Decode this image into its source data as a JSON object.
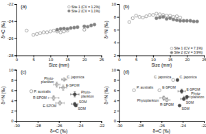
{
  "chart_data": [
    {
      "type": "scatter",
      "title": "(a)",
      "x_label": "Size (mm)",
      "y_label": "δ¹³C (‰)",
      "xlim": [
        0,
        25
      ],
      "ylim": [
        -28,
        -22
      ],
      "xticks": [
        0,
        5,
        10,
        15,
        20,
        25
      ],
      "yticks": [
        -28,
        -26,
        -24,
        -22
      ],
      "grid": false,
      "legend": "upper-right",
      "series": [
        {
          "name": "Site 1 (CV = 1.2%)",
          "color": "gray",
          "marker": "circle-open",
          "x": [
            3,
            5,
            6,
            7,
            8,
            9,
            10,
            11,
            12,
            13,
            14,
            15,
            20
          ],
          "values": [
            -25.1,
            -25.6,
            -25.5,
            -25.4,
            -25.3,
            -25.3,
            -25.2,
            -25.1,
            -25.2,
            -25.3,
            -25.2,
            -25.1,
            -25.0
          ]
        },
        {
          "name": "Site 2 (CV = 1.1%)",
          "color": "gray",
          "marker": "circle",
          "x": [
            12,
            13,
            14,
            15,
            16,
            17,
            18,
            20,
            21,
            22,
            23
          ],
          "values": [
            -25.0,
            -24.9,
            -24.85,
            -24.9,
            -24.8,
            -24.75,
            -24.7,
            -24.6,
            -24.65,
            -24.5,
            -24.4
          ]
        }
      ]
    },
    {
      "type": "scatter",
      "title": "(b)",
      "x_label": "Size (mm)",
      "y_label": "δ¹⁵N (‰)",
      "xlim": [
        0,
        25
      ],
      "ylim": [
        2,
        10
      ],
      "xticks": [
        0,
        5,
        10,
        15,
        20,
        25
      ],
      "yticks": [
        2,
        4,
        6,
        8,
        10
      ],
      "grid": false,
      "legend": "lower-right",
      "series": [
        {
          "name": "Site 1 (CV = 7.1%)",
          "color": "gray",
          "marker": "circle-open",
          "x": [
            3,
            4,
            5,
            6,
            7,
            8,
            9,
            10,
            11,
            12,
            13,
            14,
            15,
            16,
            17,
            18
          ],
          "values": [
            7.2,
            7.8,
            8.2,
            8.0,
            7.9,
            8.1,
            8.3,
            8.3,
            8.5,
            8.4,
            8.3,
            8.2,
            8.2,
            8.0,
            8.1,
            7.9
          ]
        },
        {
          "name": "Site 2 (CV = 3.9%)",
          "color": "gray",
          "marker": "circle",
          "x": [
            11,
            12,
            13,
            14,
            15,
            16,
            17,
            18,
            19,
            20,
            21,
            22,
            23
          ],
          "values": [
            7.8,
            7.9,
            8.0,
            7.7,
            7.8,
            7.6,
            7.5,
            7.4,
            7.4,
            7.4,
            7.4,
            7.3,
            7.3
          ]
        }
      ]
    },
    {
      "type": "scatter",
      "title": "(c)",
      "x_label": "δ¹³C (‰)",
      "y_label": "δ¹⁵N (‰)",
      "xlim": [
        -30,
        -22
      ],
      "ylim": [
        0,
        10
      ],
      "xticks": [
        -30,
        -28,
        -26,
        -24,
        -22
      ],
      "yticks": [
        0,
        2,
        4,
        6,
        8,
        10
      ],
      "grid": false,
      "series": [
        {
          "color": "gray",
          "marker": "circle-open",
          "x": [
            -25.5,
            -26.2,
            -25.6,
            -28.6,
            -26.5,
            -25.9
          ],
          "values": [
            8.1,
            7.1,
            6.5,
            5.8,
            4.5,
            3.5
          ],
          "xerr": [
            0.25,
            0.3,
            0.35,
            0.0,
            0.5,
            0.4
          ],
          "yerr": [
            0.3,
            0.5,
            0.5,
            0.0,
            0.5,
            0.4
          ],
          "labels": [
            "C. japonica",
            "Phyto-\nplankton",
            "E-SPOM",
            "P. australis",
            "R-SPOM",
            "E-SPOM"
          ]
        },
        {
          "color": "#444444",
          "marker": "circle",
          "x": [
            -24.5,
            -24.5,
            -24.4
          ],
          "values": [
            5.2,
            3.3,
            3.0
          ],
          "xerr": [
            0.4,
            0.3,
            0.0
          ],
          "yerr": [
            0.5,
            0.3,
            0.0
          ],
          "labels": [
            "Phyto-\nplankton",
            "SOM",
            "SOM"
          ]
        }
      ]
    },
    {
      "type": "scatter",
      "title": "(d)",
      "x_label": "δ¹³C (‰)",
      "y_label": "δ¹⁵N (‰)",
      "xlim": [
        -30,
        -22
      ],
      "ylim": [
        0,
        10
      ],
      "xticks": [
        -30,
        -28,
        -26,
        -24,
        -22
      ],
      "yticks": [
        0,
        2,
        4,
        6,
        8,
        10
      ],
      "grid": false,
      "series": [
        {
          "color": "gray",
          "marker": "circle-open",
          "x": [
            -24.9,
            -28.6,
            -26.2,
            -25.8,
            -25.5
          ],
          "values": [
            8.0,
            6.0,
            6.0,
            4.5,
            4.1
          ],
          "xerr": [
            0.0,
            0.0,
            0.0,
            0.35,
            0.3
          ],
          "yerr": [
            0.0,
            0.0,
            0.0,
            0.35,
            0.3
          ],
          "labels": [
            "C. japonica",
            "P. australis",
            "E-SPOM",
            "Phytoplankton",
            "R-SPOM"
          ]
        },
        {
          "color": "#444444",
          "marker": "circle",
          "x": [
            -24.5,
            -24.1,
            -23.6,
            -23.9,
            -24.3
          ],
          "values": [
            8.0,
            5.8,
            4.7,
            4.3,
            3.0
          ],
          "xerr": [
            0.0,
            0.35,
            0.3,
            0.3,
            0.0
          ],
          "yerr": [
            0.0,
            0.4,
            0.3,
            0.3,
            0.0
          ],
          "labels": [
            "C. japonica",
            "E-SPOM",
            "Phyto-\nplankton",
            "SOM",
            "SOM"
          ]
        }
      ]
    }
  ]
}
